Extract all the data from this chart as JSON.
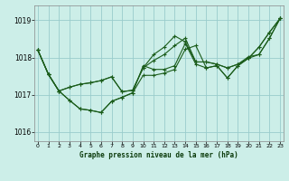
{
  "title": "Graphe pression niveau de la mer (hPa)",
  "bg_color": "#cceee8",
  "grid_color": "#99cccc",
  "line_color": "#1a5c1a",
  "ylim": [
    1015.75,
    1019.4
  ],
  "xlim": [
    -0.3,
    23.3
  ],
  "yticks": [
    1016,
    1017,
    1018,
    1019
  ],
  "xticks": [
    0,
    1,
    2,
    3,
    4,
    5,
    6,
    7,
    8,
    9,
    10,
    11,
    12,
    13,
    14,
    15,
    16,
    17,
    18,
    19,
    20,
    21,
    22,
    23
  ],
  "series": [
    [
      1018.2,
      1017.55,
      1017.1,
      1016.85,
      1016.62,
      1016.58,
      1016.52,
      1016.82,
      1016.93,
      1017.05,
      1017.78,
      1017.68,
      1017.68,
      1017.78,
      1018.38,
      1017.82,
      1017.72,
      1017.78,
      1017.45,
      1017.78,
      1017.98,
      1018.28,
      1018.68,
      1019.05
    ],
    [
      1018.2,
      1017.55,
      1017.1,
      1017.2,
      1017.28,
      1017.32,
      1017.38,
      1017.48,
      1017.08,
      1017.12,
      1017.72,
      1017.92,
      1018.08,
      1018.32,
      1018.52,
      1017.88,
      1017.88,
      1017.82,
      1017.72,
      1017.82,
      1017.98,
      1018.08,
      1018.52,
      1019.05
    ],
    [
      1018.2,
      1017.55,
      1017.1,
      1017.2,
      1017.28,
      1017.32,
      1017.38,
      1017.48,
      1017.08,
      1017.12,
      1017.72,
      1018.08,
      1018.28,
      1018.58,
      1018.42,
      1017.88,
      1017.88,
      1017.82,
      1017.72,
      1017.82,
      1018.02,
      1018.08,
      1018.52,
      1019.05
    ],
    [
      1018.2,
      1017.55,
      1017.1,
      1016.85,
      1016.62,
      1016.58,
      1016.52,
      1016.82,
      1016.93,
      1017.05,
      1017.52,
      1017.52,
      1017.58,
      1017.68,
      1018.22,
      1018.32,
      1017.72,
      1017.78,
      1017.45,
      1017.78,
      1017.98,
      1018.28,
      1018.68,
      1019.05
    ]
  ]
}
